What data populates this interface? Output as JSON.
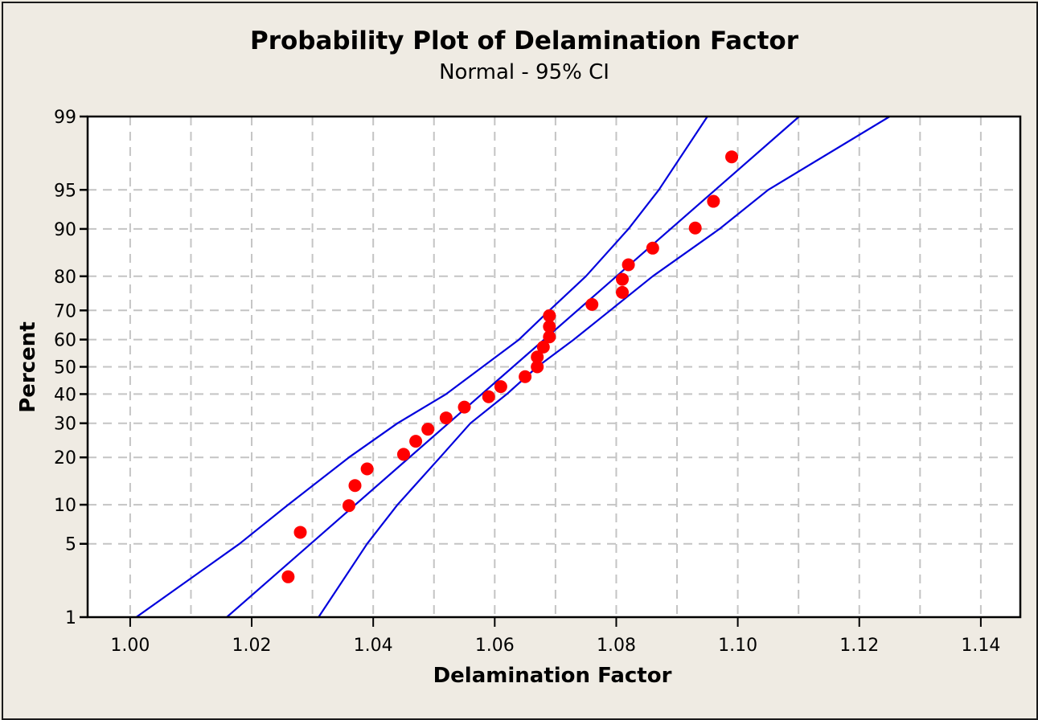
{
  "chart_data": {
    "type": "scatter",
    "title": "Probability Plot of Delamination Factor",
    "subtitle": "Normal - 95% CI",
    "xlabel": "Delamination Factor",
    "ylabel": "Percent",
    "xlim": [
      0.993,
      1.1465
    ],
    "ylim": [
      1,
      99
    ],
    "y_scale": "normal-probability",
    "grid": true,
    "x_ticks": [
      1.0,
      1.01,
      1.02,
      1.03,
      1.04,
      1.05,
      1.06,
      1.07,
      1.08,
      1.09,
      1.1,
      1.11,
      1.12,
      1.13,
      1.14
    ],
    "x_tick_labels": [
      "1.00",
      "1.02",
      "1.04",
      "1.06",
      "1.08",
      "1.10",
      "1.12",
      "1.14"
    ],
    "y_ticks": [
      1,
      5,
      10,
      20,
      30,
      40,
      50,
      60,
      70,
      80,
      90,
      95,
      99
    ],
    "y_tick_labels": [
      "1",
      "5",
      "10",
      "20",
      "30",
      "40",
      "50",
      "60",
      "70",
      "80",
      "90",
      "95",
      "99"
    ],
    "series": [
      {
        "name": "Delamination Factor",
        "color": "#ff0000",
        "points": [
          {
            "x": 1.026,
            "y": 2.55
          },
          {
            "x": 1.028,
            "y": 6.2
          },
          {
            "x": 1.036,
            "y": 9.85
          },
          {
            "x": 1.037,
            "y": 13.5
          },
          {
            "x": 1.039,
            "y": 17.15
          },
          {
            "x": 1.045,
            "y": 20.8
          },
          {
            "x": 1.047,
            "y": 24.45
          },
          {
            "x": 1.049,
            "y": 28.1
          },
          {
            "x": 1.052,
            "y": 31.75
          },
          {
            "x": 1.055,
            "y": 35.4
          },
          {
            "x": 1.059,
            "y": 39.05
          },
          {
            "x": 1.061,
            "y": 42.7
          },
          {
            "x": 1.065,
            "y": 46.35
          },
          {
            "x": 1.067,
            "y": 50.0
          },
          {
            "x": 1.067,
            "y": 53.65
          },
          {
            "x": 1.068,
            "y": 57.3
          },
          {
            "x": 1.069,
            "y": 60.95
          },
          {
            "x": 1.069,
            "y": 64.6
          },
          {
            "x": 1.069,
            "y": 68.25
          },
          {
            "x": 1.076,
            "y": 71.9
          },
          {
            "x": 1.081,
            "y": 75.55
          },
          {
            "x": 1.081,
            "y": 79.2
          },
          {
            "x": 1.082,
            "y": 82.85
          },
          {
            "x": 1.086,
            "y": 86.5
          },
          {
            "x": 1.093,
            "y": 90.15
          },
          {
            "x": 1.096,
            "y": 93.8
          },
          {
            "x": 1.099,
            "y": 97.45
          }
        ]
      }
    ],
    "fit_line": {
      "name": "Normal fit",
      "color": "#0000dd",
      "endpoints": [
        {
          "x": 1.0159,
          "y": 1
        },
        {
          "x": 1.1101,
          "y": 99
        }
      ]
    },
    "ci_bands": [
      {
        "name": "Lower 95% CI",
        "color": "#0000dd",
        "points": [
          {
            "x": 1.001,
            "y": 1
          },
          {
            "x": 1.018,
            "y": 5
          },
          {
            "x": 1.026,
            "y": 10
          },
          {
            "x": 1.036,
            "y": 20
          },
          {
            "x": 1.044,
            "y": 30
          },
          {
            "x": 1.052,
            "y": 40
          },
          {
            "x": 1.058,
            "y": 50
          },
          {
            "x": 1.064,
            "y": 60
          },
          {
            "x": 1.069,
            "y": 70
          },
          {
            "x": 1.075,
            "y": 80
          },
          {
            "x": 1.082,
            "y": 90
          },
          {
            "x": 1.087,
            "y": 95
          },
          {
            "x": 1.095,
            "y": 99
          }
        ]
      },
      {
        "name": "Upper 95% CI",
        "color": "#0000dd",
        "points": [
          {
            "x": 1.031,
            "y": 1
          },
          {
            "x": 1.039,
            "y": 5
          },
          {
            "x": 1.044,
            "y": 10
          },
          {
            "x": 1.051,
            "y": 20
          },
          {
            "x": 1.056,
            "y": 30
          },
          {
            "x": 1.062,
            "y": 40
          },
          {
            "x": 1.067,
            "y": 50
          },
          {
            "x": 1.073,
            "y": 60
          },
          {
            "x": 1.079,
            "y": 70
          },
          {
            "x": 1.086,
            "y": 80
          },
          {
            "x": 1.097,
            "y": 90
          },
          {
            "x": 1.105,
            "y": 95
          },
          {
            "x": 1.125,
            "y": 99
          }
        ]
      }
    ]
  }
}
